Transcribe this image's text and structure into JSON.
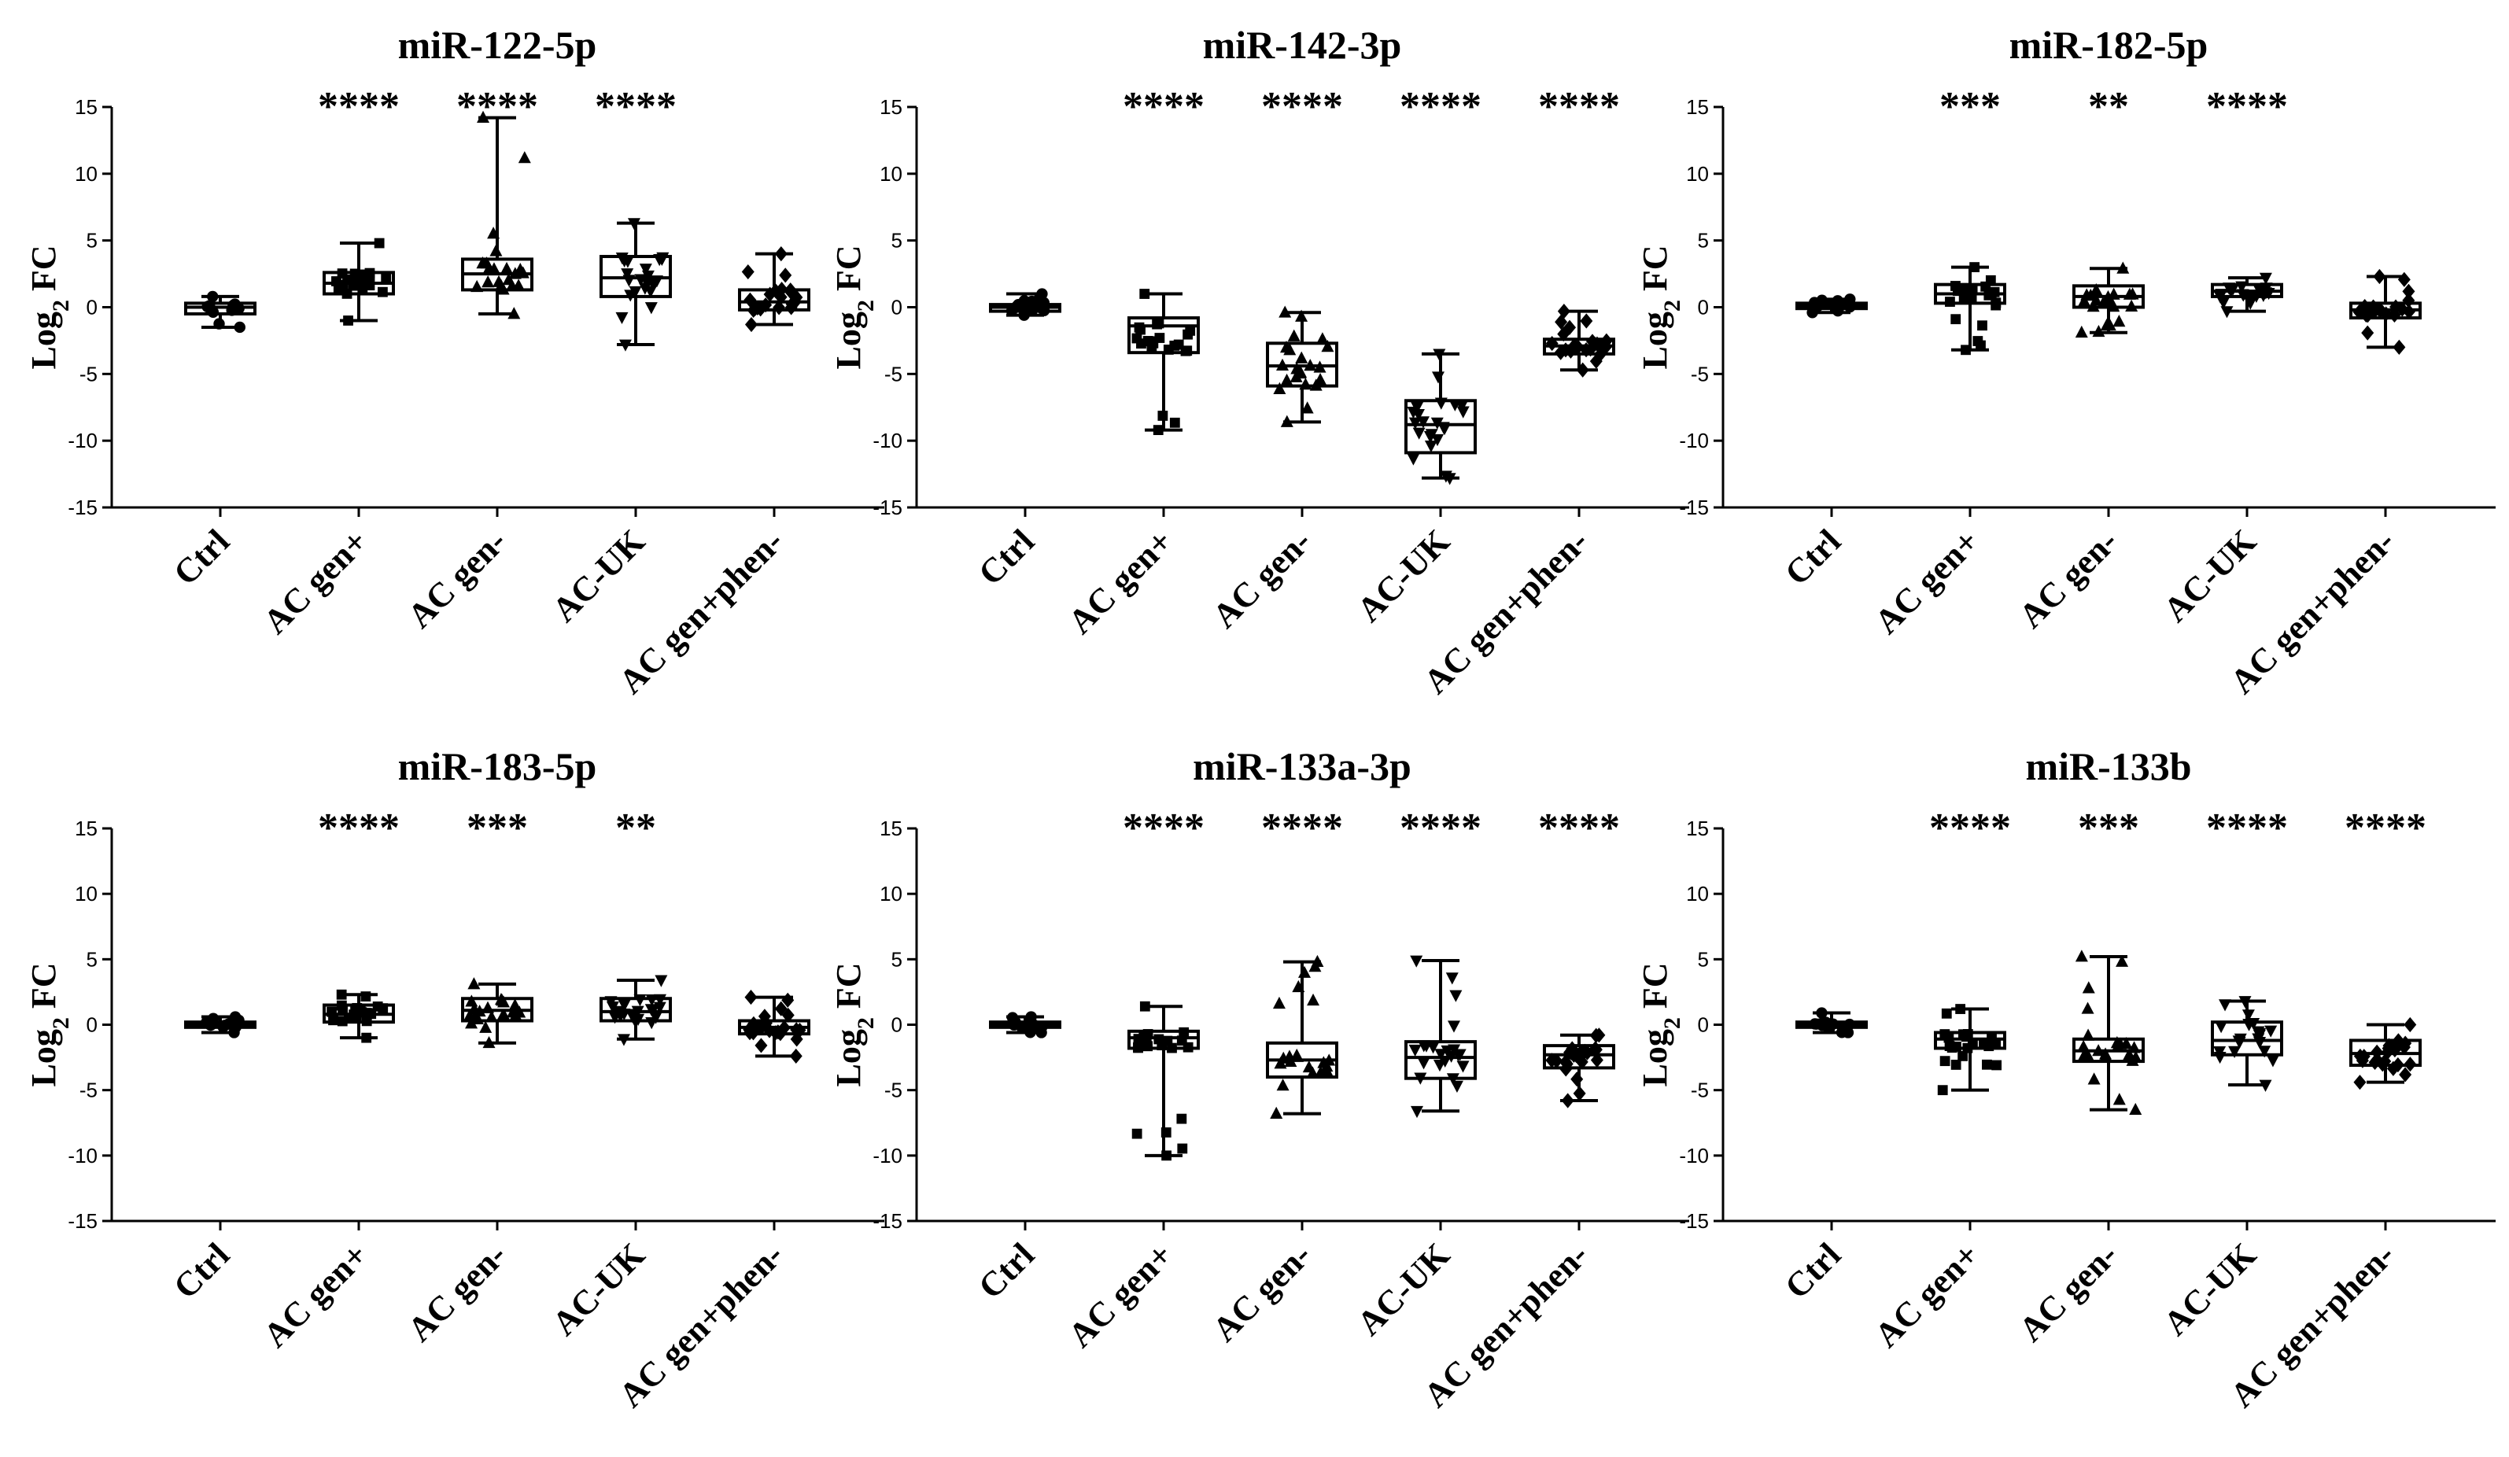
{
  "chart_data": [
    {
      "type": "box",
      "title": "miR-122-5p",
      "ylabel_base": "Log",
      "ylabel_sub": "2",
      "ylabel_suffix": " FC",
      "ylim": [
        -15,
        15
      ],
      "yticks": [
        15,
        10,
        5,
        0,
        -5,
        -10,
        -15
      ],
      "categories": [
        "Ctrl",
        "AC gen+",
        "AC gen-",
        "AC-UK",
        "AC gen+phen-"
      ],
      "significance": [
        "",
        "****",
        "****",
        "****",
        ""
      ],
      "boxes": [
        {
          "min": -1.5,
          "q1": -0.5,
          "median": 0.0,
          "q3": 0.3,
          "max": 0.8
        },
        {
          "min": -1.0,
          "q1": 1.0,
          "median": 1.8,
          "q3": 2.6,
          "max": 4.8
        },
        {
          "min": -0.5,
          "q1": 1.3,
          "median": 2.5,
          "q3": 3.6,
          "max": 14.2
        },
        {
          "min": -2.8,
          "q1": 0.8,
          "median": 2.2,
          "q3": 3.8,
          "max": 6.3
        },
        {
          "min": -1.3,
          "q1": -0.2,
          "median": 0.4,
          "q3": 1.3,
          "max": 4.0
        }
      ],
      "markers": [
        "circle",
        "square",
        "triangle-up",
        "triangle-down",
        "diamond"
      ]
    },
    {
      "type": "box",
      "title": "miR-142-3p",
      "ylabel_base": "Log",
      "ylabel_sub": "2",
      "ylabel_suffix": " FC",
      "ylim": [
        -15,
        15
      ],
      "yticks": [
        15,
        10,
        5,
        0,
        -5,
        -10,
        -15
      ],
      "categories": [
        "Ctrl",
        "AC gen+",
        "AC gen-",
        "AC-UK",
        "AC gen+phen-"
      ],
      "significance": [
        "",
        "****",
        "****",
        "****",
        "****"
      ],
      "boxes": [
        {
          "min": -0.6,
          "q1": -0.3,
          "median": 0.0,
          "q3": 0.2,
          "max": 1.0
        },
        {
          "min": -9.2,
          "q1": -3.4,
          "median": -1.4,
          "q3": -0.8,
          "max": 1.0
        },
        {
          "min": -8.6,
          "q1": -5.9,
          "median": -4.4,
          "q3": -2.7,
          "max": -0.4
        },
        {
          "min": -12.8,
          "q1": -10.9,
          "median": -8.8,
          "q3": -7.0,
          "max": -3.5
        },
        {
          "min": -4.7,
          "q1": -3.5,
          "median": -2.9,
          "q3": -2.4,
          "max": -0.3
        }
      ],
      "markers": [
        "circle",
        "square",
        "triangle-up",
        "triangle-down",
        "diamond"
      ]
    },
    {
      "type": "box",
      "title": "miR-182-5p",
      "ylabel_base": "Log",
      "ylabel_sub": "2",
      "ylabel_suffix": " FC",
      "ylim": [
        -15,
        15
      ],
      "yticks": [
        15,
        10,
        5,
        0,
        -5,
        -10,
        -15
      ],
      "categories": [
        "Ctrl",
        "AC gen+",
        "AC gen-",
        "AC-UK",
        "AC gen+phen-"
      ],
      "significance": [
        "",
        "***",
        "**",
        "****",
        ""
      ],
      "boxes": [
        {
          "min": -0.4,
          "q1": -0.1,
          "median": 0.1,
          "q3": 0.3,
          "max": 0.6
        },
        {
          "min": -3.2,
          "q1": 0.3,
          "median": 1.0,
          "q3": 1.7,
          "max": 3.0
        },
        {
          "min": -1.9,
          "q1": 0.0,
          "median": 0.8,
          "q3": 1.6,
          "max": 2.9
        },
        {
          "min": -0.3,
          "q1": 0.8,
          "median": 1.2,
          "q3": 1.7,
          "max": 2.2
        },
        {
          "min": -3.0,
          "q1": -0.8,
          "median": -0.2,
          "q3": 0.3,
          "max": 2.3
        }
      ],
      "markers": [
        "circle",
        "square",
        "triangle-up",
        "triangle-down",
        "diamond"
      ]
    },
    {
      "type": "box",
      "title": "miR-183-5p",
      "ylabel_base": "Log",
      "ylabel_sub": "2",
      "ylabel_suffix": " FC",
      "ylim": [
        -15,
        15
      ],
      "yticks": [
        15,
        10,
        5,
        0,
        -5,
        -10,
        -15
      ],
      "categories": [
        "Ctrl",
        "AC gen+",
        "AC gen-",
        "AC-UK",
        "AC gen+phen-"
      ],
      "significance": [
        "",
        "****",
        "***",
        "**",
        ""
      ],
      "boxes": [
        {
          "min": -0.6,
          "q1": -0.2,
          "median": 0.0,
          "q3": 0.2,
          "max": 0.6
        },
        {
          "min": -1.0,
          "q1": 0.2,
          "median": 0.8,
          "q3": 1.5,
          "max": 2.3
        },
        {
          "min": -1.4,
          "q1": 0.3,
          "median": 1.1,
          "q3": 2.0,
          "max": 3.1
        },
        {
          "min": -1.1,
          "q1": 0.3,
          "median": 1.0,
          "q3": 2.0,
          "max": 3.4
        },
        {
          "min": -2.4,
          "q1": -0.7,
          "median": -0.2,
          "q3": 0.3,
          "max": 2.1
        }
      ],
      "markers": [
        "circle",
        "square",
        "triangle-up",
        "triangle-down",
        "diamond"
      ]
    },
    {
      "type": "box",
      "title": "miR-133a-3p",
      "ylabel_base": "Log",
      "ylabel_sub": "2",
      "ylabel_suffix": " FC",
      "ylim": [
        -15,
        15
      ],
      "yticks": [
        15,
        10,
        5,
        0,
        -5,
        -10,
        -15
      ],
      "categories": [
        "Ctrl",
        "AC gen+",
        "AC gen-",
        "AC-UK",
        "AC gen+phen-"
      ],
      "significance": [
        "",
        "****",
        "****",
        "****",
        "****"
      ],
      "boxes": [
        {
          "min": -0.6,
          "q1": -0.2,
          "median": 0.0,
          "q3": 0.2,
          "max": 0.6
        },
        {
          "min": -10.0,
          "q1": -1.8,
          "median": -1.0,
          "q3": -0.5,
          "max": 1.4
        },
        {
          "min": -6.8,
          "q1": -4.0,
          "median": -2.7,
          "q3": -1.4,
          "max": 4.8
        },
        {
          "min": -6.6,
          "q1": -4.1,
          "median": -2.5,
          "q3": -1.3,
          "max": 4.9
        },
        {
          "min": -5.8,
          "q1": -3.3,
          "median": -2.3,
          "q3": -1.6,
          "max": -0.8
        }
      ],
      "markers": [
        "circle",
        "square",
        "triangle-up",
        "triangle-down",
        "diamond"
      ]
    },
    {
      "type": "box",
      "title": "miR-133b",
      "ylabel_base": "Log",
      "ylabel_sub": "2",
      "ylabel_suffix": " FC",
      "ylim": [
        -15,
        15
      ],
      "yticks": [
        15,
        10,
        5,
        0,
        -5,
        -10,
        -15
      ],
      "categories": [
        "Ctrl",
        "AC gen+",
        "AC gen-",
        "AC-UK",
        "AC gen+phen-"
      ],
      "significance": [
        "",
        "****",
        "***",
        "****",
        "****"
      ],
      "boxes": [
        {
          "min": -0.6,
          "q1": -0.2,
          "median": 0.0,
          "q3": 0.2,
          "max": 0.9
        },
        {
          "min": -5.0,
          "q1": -1.8,
          "median": -1.1,
          "q3": -0.6,
          "max": 1.2
        },
        {
          "min": -6.5,
          "q1": -2.8,
          "median": -2.0,
          "q3": -1.1,
          "max": 5.2
        },
        {
          "min": -4.6,
          "q1": -2.3,
          "median": -1.2,
          "q3": 0.2,
          "max": 1.8
        },
        {
          "min": -4.4,
          "q1": -3.1,
          "median": -2.2,
          "q3": -1.2,
          "max": 0.0
        }
      ],
      "markers": [
        "circle",
        "square",
        "triangle-up",
        "triangle-down",
        "diamond"
      ]
    }
  ]
}
